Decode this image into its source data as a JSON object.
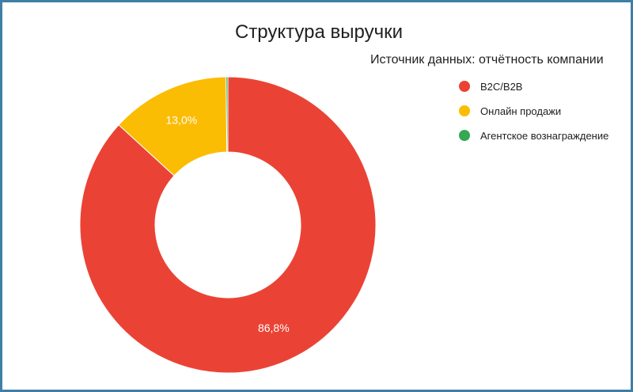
{
  "chart_data": {
    "type": "pie",
    "title": "Структура выручки",
    "legend_title": "Источник данных: отчётность компании",
    "legend_position": "top-right",
    "donut": true,
    "slices": [
      {
        "label": "B2C/B2B",
        "value": 86.8,
        "data_label": "86,8%",
        "color": "#ea4335"
      },
      {
        "label": "Онлайн продажи",
        "value": 13.0,
        "data_label": "13,0%",
        "color": "#fbbc04"
      },
      {
        "label": "Агентское вознаграждение",
        "value": 0.2,
        "data_label": "",
        "color": "#34a853"
      }
    ]
  }
}
